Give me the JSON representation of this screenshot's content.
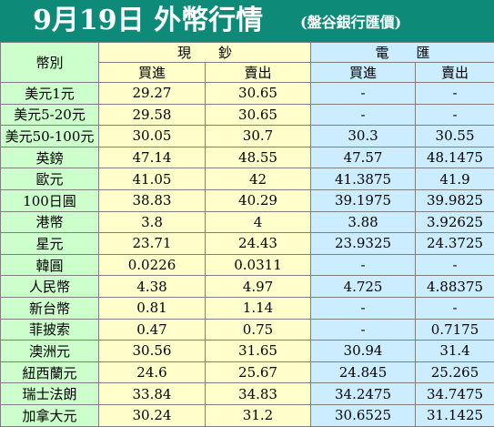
{
  "title": "9月19日 外幣行情",
  "subtitle": "(盤谷銀行匯價)",
  "table": {
    "currency_header": "幣別",
    "cash_header": "現　　鈔",
    "wire_header": "電　　匯",
    "buy_header": "買進",
    "sell_header": "賣出",
    "rows": [
      {
        "name": "美元1元",
        "cash_buy": "29.27",
        "cash_sell": "30.65",
        "wire_buy": "-",
        "wire_sell": "-"
      },
      {
        "name": "美元5-20元",
        "cash_buy": "29.58",
        "cash_sell": "30.65",
        "wire_buy": "-",
        "wire_sell": "-"
      },
      {
        "name": "美元50-100元",
        "cash_buy": "30.05",
        "cash_sell": "30.7",
        "wire_buy": "30.3",
        "wire_sell": "30.55"
      },
      {
        "name": "英鎊",
        "cash_buy": "47.14",
        "cash_sell": "48.55",
        "wire_buy": "47.57",
        "wire_sell": "48.1475"
      },
      {
        "name": "歐元",
        "cash_buy": "41.05",
        "cash_sell": "42",
        "wire_buy": "41.3875",
        "wire_sell": "41.9"
      },
      {
        "name": "100日圓",
        "cash_buy": "38.83",
        "cash_sell": "40.29",
        "wire_buy": "39.1975",
        "wire_sell": "39.9825"
      },
      {
        "name": "港幣",
        "cash_buy": "3.8",
        "cash_sell": "4",
        "wire_buy": "3.88",
        "wire_sell": "3.92625"
      },
      {
        "name": "星元",
        "cash_buy": "23.71",
        "cash_sell": "24.43",
        "wire_buy": "23.9325",
        "wire_sell": "24.3725"
      },
      {
        "name": "韓圓",
        "cash_buy": "0.0226",
        "cash_sell": "0.0311",
        "wire_buy": "-",
        "wire_sell": "-"
      },
      {
        "name": "人民幣",
        "cash_buy": "4.38",
        "cash_sell": "4.97",
        "wire_buy": "4.725",
        "wire_sell": "4.88375"
      },
      {
        "name": "新台幣",
        "cash_buy": "0.81",
        "cash_sell": "1.14",
        "wire_buy": "-",
        "wire_sell": "-"
      },
      {
        "name": "菲披索",
        "cash_buy": "0.47",
        "cash_sell": "0.75",
        "wire_buy": "-",
        "wire_sell": "0.7175"
      },
      {
        "name": "澳洲元",
        "cash_buy": "30.56",
        "cash_sell": "31.65",
        "wire_buy": "30.94",
        "wire_sell": "31.4"
      },
      {
        "name": "紐西蘭元",
        "cash_buy": "24.6",
        "cash_sell": "25.67",
        "wire_buy": "24.845",
        "wire_sell": "25.265"
      },
      {
        "name": "瑞士法朗",
        "cash_buy": "33.84",
        "cash_sell": "34.83",
        "wire_buy": "34.2475",
        "wire_sell": "34.7475"
      },
      {
        "name": "加拿大元",
        "cash_buy": "30.24",
        "cash_sell": "31.2",
        "wire_buy": "30.6525",
        "wire_sell": "31.1425"
      }
    ]
  },
  "colors": {
    "title_bar": "#0e8a78",
    "currency_column": "#ccffcc",
    "cash_columns": "#ffffcc",
    "wire_columns": "#ccecff"
  }
}
